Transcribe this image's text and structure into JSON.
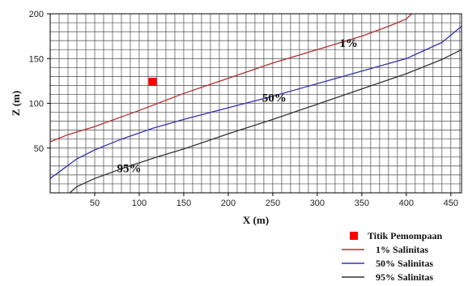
{
  "chart_data": {
    "type": "line",
    "title": "",
    "xlabel": "X (m)",
    "ylabel": "Z (m)",
    "xlim": [
      0,
      462
    ],
    "ylim": [
      0,
      200
    ],
    "x_ticks": [
      50,
      100,
      150,
      200,
      250,
      300,
      350,
      400,
      450
    ],
    "y_ticks": [
      50,
      100,
      150,
      200
    ],
    "grid": true,
    "legend_position": "bottom-right",
    "series": [
      {
        "name": "Titik Pemompaan",
        "kind": "marker",
        "color": "#ff0000",
        "points": [
          [
            115,
            124
          ]
        ]
      },
      {
        "name": "1% Salinitas",
        "kind": "line",
        "color": "#b03030",
        "points": [
          [
            0,
            57
          ],
          [
            20,
            65
          ],
          [
            50,
            74
          ],
          [
            100,
            92
          ],
          [
            150,
            111
          ],
          [
            200,
            128
          ],
          [
            250,
            145
          ],
          [
            300,
            160
          ],
          [
            350,
            175
          ],
          [
            380,
            186
          ],
          [
            400,
            194
          ],
          [
            406,
            200
          ]
        ]
      },
      {
        "name": "50% Salinitas",
        "kind": "line",
        "color": "#3333aa",
        "points": [
          [
            0,
            16
          ],
          [
            15,
            27
          ],
          [
            30,
            38
          ],
          [
            50,
            48
          ],
          [
            80,
            60
          ],
          [
            115,
            72
          ],
          [
            150,
            82
          ],
          [
            200,
            95
          ],
          [
            250,
            108
          ],
          [
            300,
            122
          ],
          [
            350,
            136
          ],
          [
            400,
            150
          ],
          [
            440,
            168
          ],
          [
            462,
            186
          ]
        ]
      },
      {
        "name": "95% Salinitas",
        "kind": "line",
        "color": "#333333",
        "points": [
          [
            22,
            0
          ],
          [
            30,
            7
          ],
          [
            50,
            16
          ],
          [
            80,
            27
          ],
          [
            120,
            40
          ],
          [
            150,
            49
          ],
          [
            200,
            66
          ],
          [
            250,
            82
          ],
          [
            300,
            99
          ],
          [
            350,
            116
          ],
          [
            400,
            133
          ],
          [
            440,
            149
          ],
          [
            462,
            160
          ]
        ]
      }
    ],
    "annotations": [
      {
        "text": "1%",
        "x": 325,
        "y": 163
      },
      {
        "text": "50%",
        "x": 238,
        "y": 102
      },
      {
        "text": "95%",
        "x": 75,
        "y": 23
      }
    ]
  }
}
